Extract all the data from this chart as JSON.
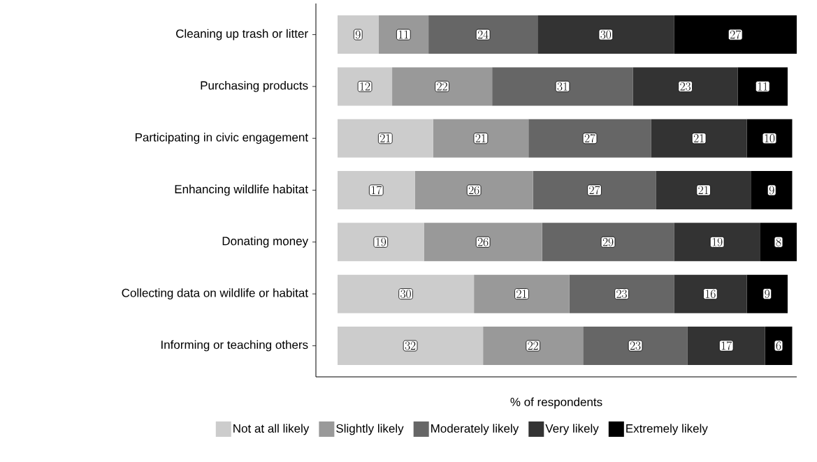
{
  "chart_data": {
    "type": "bar",
    "orientation": "horizontal",
    "stacked": true,
    "data_labels": true,
    "legend": "bottom",
    "tick_labels": "y",
    "xlabel": "% of respondents",
    "categories": [
      "Cleaning up trash or litter",
      "Purchasing products",
      "Participating in civic engagement",
      "Enhancing wildlife habitat",
      "Donating money",
      "Collecting data on wildlife or habitat",
      "Informing or teaching others"
    ],
    "series": [
      {
        "name": "Not at all likely",
        "color": "#cccccc",
        "values": [
          9,
          12,
          21,
          17,
          19,
          30,
          32
        ]
      },
      {
        "name": "Slightly likely",
        "color": "#999999",
        "values": [
          11,
          22,
          21,
          26,
          26,
          21,
          22
        ]
      },
      {
        "name": "Moderately likely",
        "color": "#666666",
        "values": [
          24,
          31,
          27,
          27,
          29,
          23,
          23
        ]
      },
      {
        "name": "Very likely",
        "color": "#333333",
        "values": [
          30,
          23,
          21,
          21,
          19,
          16,
          17
        ]
      },
      {
        "name": "Extremely likely",
        "color": "#000000",
        "values": [
          27,
          11,
          10,
          9,
          8,
          9,
          6
        ]
      }
    ]
  }
}
